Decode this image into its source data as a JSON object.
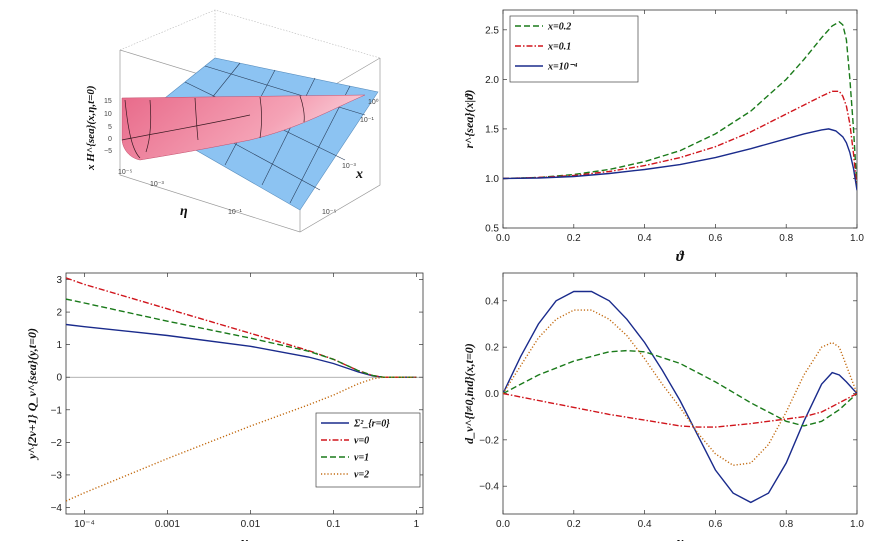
{
  "chart_data": [
    {
      "type": "surface3d",
      "zlabel": "x H^{sea}(x,η,t=0)",
      "xlabel": "η",
      "ylabel": "x",
      "eta_ticks": [
        "10⁻⁵",
        "10⁻³",
        "10⁻¹"
      ],
      "x_ticks": [
        "10⁻⁵",
        "10⁻³",
        "10⁻¹",
        "10⁰"
      ],
      "z_ticks": [
        "15",
        "10",
        "5",
        "0",
        "−5"
      ],
      "colors": {
        "positive": "#f07a97",
        "negative": "#8cc3f2"
      }
    },
    {
      "type": "line",
      "xlabel": "ϑ",
      "ylabel": "r^{sea}(x|ϑ)",
      "xlim": [
        0,
        1
      ],
      "ylim": [
        0.5,
        2.7
      ],
      "xticks": [
        "0.0",
        "0.2",
        "0.4",
        "0.6",
        "0.8",
        "1.0"
      ],
      "yticks": [
        "0.5",
        "1.0",
        "1.5",
        "2.0",
        "2.5"
      ],
      "legend_position": "top-left",
      "series": [
        {
          "name": "x=0.2",
          "color": "#1a7a1a",
          "dash": "dashed",
          "x": [
            0,
            0.1,
            0.2,
            0.3,
            0.4,
            0.5,
            0.6,
            0.7,
            0.8,
            0.85,
            0.9,
            0.93,
            0.95,
            0.96,
            0.97,
            0.98,
            0.99,
            1.0
          ],
          "y": [
            1.0,
            1.01,
            1.04,
            1.09,
            1.17,
            1.28,
            1.45,
            1.68,
            2.0,
            2.2,
            2.42,
            2.54,
            2.58,
            2.55,
            2.4,
            2.0,
            1.5,
            0.9
          ]
        },
        {
          "name": "x=0.1",
          "color": "#d0151c",
          "dash": "dashdot",
          "x": [
            0,
            0.1,
            0.2,
            0.3,
            0.4,
            0.5,
            0.6,
            0.7,
            0.8,
            0.85,
            0.9,
            0.93,
            0.95,
            0.96,
            0.97,
            0.98,
            0.99,
            1.0
          ],
          "y": [
            1.0,
            1.01,
            1.03,
            1.07,
            1.13,
            1.21,
            1.32,
            1.47,
            1.65,
            1.74,
            1.83,
            1.88,
            1.88,
            1.83,
            1.73,
            1.55,
            1.25,
            0.9
          ]
        },
        {
          "name": "x=10⁻⁴",
          "color": "#1a2b8c",
          "dash": "solid",
          "x": [
            0,
            0.1,
            0.2,
            0.3,
            0.4,
            0.5,
            0.6,
            0.7,
            0.8,
            0.85,
            0.9,
            0.92,
            0.94,
            0.96,
            0.97,
            0.98,
            0.99,
            1.0
          ],
          "y": [
            1.0,
            1.005,
            1.02,
            1.05,
            1.09,
            1.14,
            1.21,
            1.3,
            1.4,
            1.45,
            1.49,
            1.5,
            1.48,
            1.42,
            1.36,
            1.26,
            1.1,
            0.88
          ]
        }
      ]
    },
    {
      "type": "line",
      "xlabel": "y",
      "ylabel": "y^{2ν+1} Q_ν^{sea}(y,t=0)",
      "xscale": "log",
      "xlim": [
        6e-05,
        1.2
      ],
      "ylim": [
        -4.2,
        3.2
      ],
      "xticks": [
        "10⁻⁴",
        "0.001",
        "0.01",
        "0.1",
        "1"
      ],
      "yticks": [
        "3",
        "2",
        "1",
        "0",
        "−1",
        "−2",
        "−3",
        "−4"
      ],
      "legend_position": "bottom-right",
      "series": [
        {
          "name": "Σ²_{r=0}",
          "color": "#1a2b8c",
          "dash": "solid",
          "x": [
            6e-05,
            0.0001,
            0.001,
            0.01,
            0.05,
            0.1,
            0.2,
            0.3,
            0.4,
            0.6,
            1.0
          ],
          "y": [
            1.62,
            1.55,
            1.28,
            0.95,
            0.62,
            0.42,
            0.16,
            0.04,
            0.0,
            0.0,
            0.0
          ]
        },
        {
          "name": "ν=0",
          "color": "#d0151c",
          "dash": "dashdot",
          "x": [
            6e-05,
            0.0001,
            0.001,
            0.01,
            0.05,
            0.1,
            0.2,
            0.3,
            0.4,
            0.6,
            1.0
          ],
          "y": [
            3.05,
            2.85,
            2.1,
            1.35,
            0.82,
            0.55,
            0.2,
            0.05,
            0.0,
            0.0,
            0.0
          ]
        },
        {
          "name": "ν=1",
          "color": "#1a7a1a",
          "dash": "dashed",
          "x": [
            6e-05,
            0.0001,
            0.001,
            0.01,
            0.05,
            0.1,
            0.2,
            0.3,
            0.4,
            0.6,
            1.0
          ],
          "y": [
            2.4,
            2.28,
            1.72,
            1.2,
            0.8,
            0.55,
            0.2,
            0.05,
            0.0,
            0.0,
            0.0
          ]
        },
        {
          "name": "ν=2",
          "color": "#c26a10",
          "dash": "dotted",
          "x": [
            6e-05,
            0.0001,
            0.001,
            0.01,
            0.05,
            0.1,
            0.2,
            0.3,
            0.4,
            0.6,
            1.0
          ],
          "y": [
            -3.8,
            -3.55,
            -2.5,
            -1.5,
            -0.85,
            -0.55,
            -0.2,
            -0.05,
            0.0,
            0.0,
            0.0
          ]
        }
      ]
    },
    {
      "type": "line",
      "xlabel": "x",
      "ylabel": "d_ν^{l≠0,ind}(x,t=0)",
      "xlim": [
        0,
        1
      ],
      "ylim": [
        -0.52,
        0.52
      ],
      "xticks": [
        "0.0",
        "0.2",
        "0.4",
        "0.6",
        "0.8",
        "1.0"
      ],
      "yticks": [
        "0.4",
        "0.2",
        "0.0",
        "−0.2",
        "−0.4"
      ],
      "series": [
        {
          "name": "blue solid",
          "color": "#1a2b8c",
          "dash": "solid",
          "x": [
            0,
            0.05,
            0.1,
            0.15,
            0.2,
            0.25,
            0.3,
            0.35,
            0.4,
            0.45,
            0.5,
            0.55,
            0.6,
            0.65,
            0.7,
            0.75,
            0.8,
            0.85,
            0.9,
            0.93,
            0.95,
            0.97,
            1.0
          ],
          "y": [
            0.0,
            0.16,
            0.3,
            0.4,
            0.44,
            0.44,
            0.4,
            0.32,
            0.22,
            0.1,
            -0.03,
            -0.18,
            -0.33,
            -0.43,
            -0.47,
            -0.43,
            -0.3,
            -0.12,
            0.04,
            0.09,
            0.08,
            0.05,
            0.0
          ]
        },
        {
          "name": "green dashed",
          "color": "#1a7a1a",
          "dash": "dashed",
          "x": [
            0,
            0.1,
            0.2,
            0.3,
            0.35,
            0.4,
            0.5,
            0.6,
            0.7,
            0.8,
            0.85,
            0.9,
            0.95,
            1.0
          ],
          "y": [
            0.0,
            0.08,
            0.14,
            0.18,
            0.185,
            0.18,
            0.13,
            0.05,
            -0.04,
            -0.12,
            -0.14,
            -0.12,
            -0.07,
            0.0
          ]
        },
        {
          "name": "red dashdot",
          "color": "#d0151c",
          "dash": "dashdot",
          "x": [
            0,
            0.1,
            0.2,
            0.3,
            0.4,
            0.5,
            0.55,
            0.6,
            0.7,
            0.8,
            0.85,
            0.9,
            0.95,
            1.0
          ],
          "y": [
            0.0,
            -0.03,
            -0.06,
            -0.09,
            -0.115,
            -0.14,
            -0.145,
            -0.145,
            -0.13,
            -0.11,
            -0.1,
            -0.08,
            -0.04,
            0.0
          ]
        },
        {
          "name": "orange dotted",
          "color": "#c26a10",
          "dash": "dotted",
          "x": [
            0,
            0.05,
            0.1,
            0.15,
            0.2,
            0.25,
            0.3,
            0.35,
            0.4,
            0.45,
            0.5,
            0.55,
            0.6,
            0.65,
            0.7,
            0.75,
            0.8,
            0.85,
            0.9,
            0.93,
            0.95,
            0.97,
            1.0
          ],
          "y": [
            0.0,
            0.12,
            0.24,
            0.32,
            0.36,
            0.36,
            0.32,
            0.25,
            0.15,
            0.04,
            -0.06,
            -0.17,
            -0.26,
            -0.31,
            -0.3,
            -0.22,
            -0.08,
            0.08,
            0.2,
            0.22,
            0.2,
            0.12,
            0.0
          ]
        }
      ]
    }
  ]
}
